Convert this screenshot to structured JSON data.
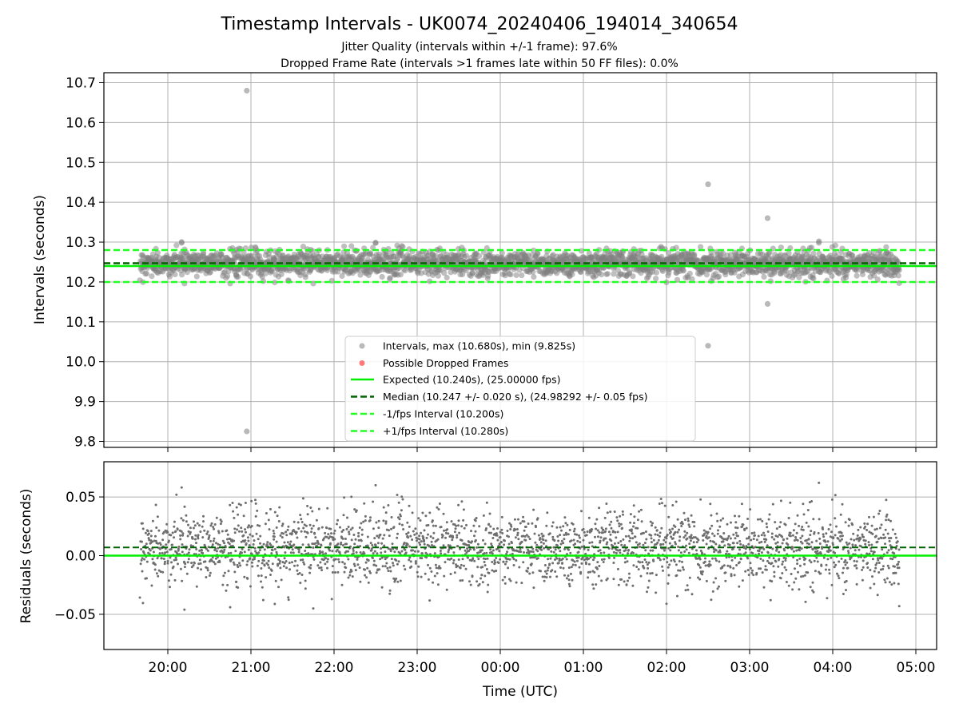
{
  "figure": {
    "title": "Timestamp Intervals - UK0074_20240406_194014_340654",
    "subtitle_1": "Jitter Quality (intervals within +/-1 frame): 97.6%",
    "subtitle_2": "Dropped Frame Rate (intervals >1 frames late within 50 FF files): 0.0%"
  },
  "colors": {
    "scatter": "#808080",
    "dropped": "#ff4d4d",
    "expected": "#00ee00",
    "median": "#006400",
    "bounds": "#22ff22",
    "grid": "#b0b0b0"
  },
  "chart_data": [
    {
      "type": "scatter",
      "ylabel": "Intervals (seconds)",
      "ylim": [
        9.785,
        10.725
      ],
      "yticks": [
        "9.8",
        "9.9",
        "10.0",
        "10.1",
        "10.2",
        "10.3",
        "10.4",
        "10.5",
        "10.6",
        "10.7"
      ],
      "grid": true,
      "legend_placement": "lower-center",
      "series": [
        {
          "name": "Intervals, max (10.680s), min (9.825s)",
          "kind": "points",
          "y_band": [
            10.2,
            10.3
          ]
        },
        {
          "name": "Possible Dropped Frames",
          "kind": "points",
          "values": []
        },
        {
          "name": "Expected (10.240s), (25.00000 fps)",
          "kind": "hline",
          "y": 10.24
        },
        {
          "name": "Median (10.247 +/- 0.020 s), (24.98292 +/- 0.05 fps)",
          "kind": "hline",
          "y": 10.247
        },
        {
          "name": "-1/fps Interval (10.200s)",
          "kind": "hline",
          "y": 10.2
        },
        {
          "name": "+1/fps Interval (10.280s)",
          "kind": "hline",
          "y": 10.28
        }
      ],
      "outliers": [
        {
          "x": "20:57",
          "y": 10.68
        },
        {
          "x": "20:57",
          "y": 9.825
        },
        {
          "x": "02:30",
          "y": 10.445
        },
        {
          "x": "02:30",
          "y": 10.04
        },
        {
          "x": "03:13",
          "y": 10.36
        },
        {
          "x": "03:13",
          "y": 10.145
        },
        {
          "x": "20:10",
          "y": 10.3
        },
        {
          "x": "22:30",
          "y": 10.298
        },
        {
          "x": "03:50",
          "y": 10.302
        }
      ]
    },
    {
      "type": "scatter",
      "xlabel": "Time (UTC)",
      "ylabel": "Residuals (seconds)",
      "ylim": [
        -0.08,
        0.08
      ],
      "yticks": [
        "−0.05",
        "0.00",
        "0.05"
      ],
      "xticks": [
        "20:00",
        "21:00",
        "22:00",
        "23:00",
        "00:00",
        "01:00",
        "02:00",
        "03:00",
        "04:00",
        "05:00"
      ],
      "grid": true,
      "series": [
        {
          "name": "Residuals",
          "kind": "points",
          "y_band": [
            -0.045,
            0.062
          ]
        },
        {
          "name": "Expected",
          "kind": "hline",
          "y": 0.0
        },
        {
          "name": "Median",
          "kind": "hline",
          "y": 0.007
        }
      ]
    }
  ]
}
